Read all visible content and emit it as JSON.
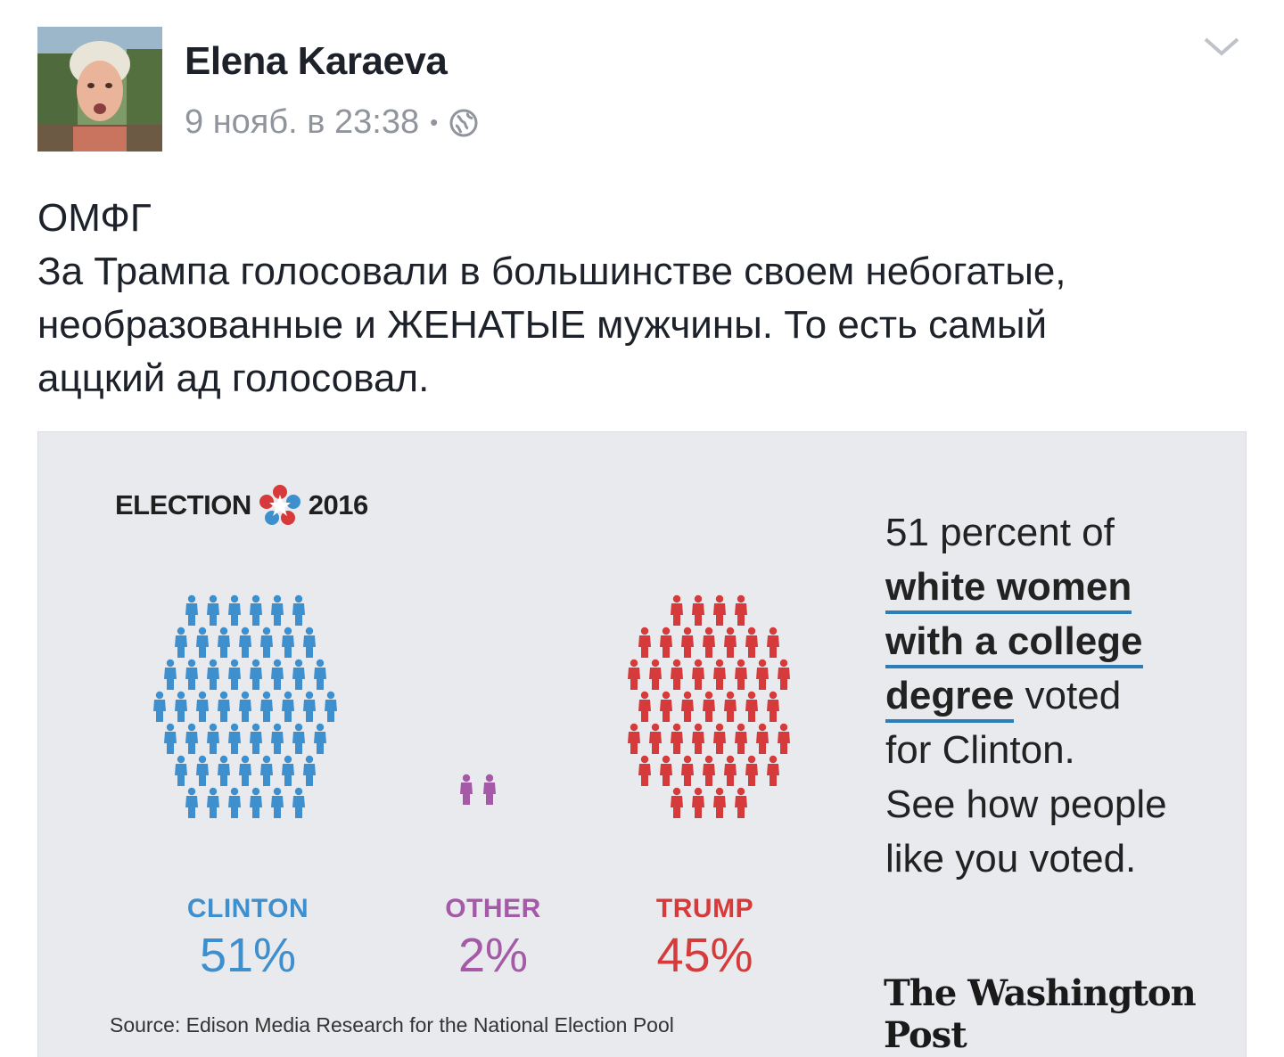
{
  "post": {
    "author": "Elena Karaeva",
    "timestamp": "9 нояб. в 23:38",
    "separator": "•",
    "privacy_icon": "globe-icon",
    "menu_icon": "chevron-down-icon",
    "text_lines": [
      "ОМФГ",
      "За Трампа голосовали в большинстве своем небогатые,",
      "необразованные и ЖЕНАТЫЕ мужчины. То есть самый",
      "аццкий ад голосовал."
    ]
  },
  "infographic": {
    "logo_left": "ELECTION",
    "logo_right": "2016",
    "side_text": {
      "line1": "51 percent of",
      "highlight1": "white women",
      "highlight2": "with a college",
      "highlight3": "degree",
      "line4_rest": " voted",
      "line5": "for Clinton.",
      "line6": "See how people",
      "line7": "like you voted."
    },
    "publisher": "The Washington Post",
    "source": "Source: Edison Media Research for the National Election Pool",
    "colors": {
      "clinton": "#3d8fce",
      "other": "#a55aa8",
      "trump": "#d63a3a",
      "underline": "#2a7fb8"
    }
  },
  "chart_data": {
    "type": "pictogram",
    "title": "ELECTION 2016",
    "unit": "percent of white women with a college degree",
    "categories": [
      "CLINTON",
      "OTHER",
      "TRUMP"
    ],
    "values": [
      51,
      2,
      45
    ],
    "labels": [
      "51%",
      "2%",
      "45%"
    ],
    "series": [
      {
        "name": "CLINTON",
        "value": 51,
        "figures": 51,
        "color": "#3d8fce"
      },
      {
        "name": "OTHER",
        "value": 2,
        "figures": 2,
        "color": "#a55aa8"
      },
      {
        "name": "TRUMP",
        "value": 45,
        "figures": 45,
        "color": "#d63a3a"
      }
    ]
  }
}
